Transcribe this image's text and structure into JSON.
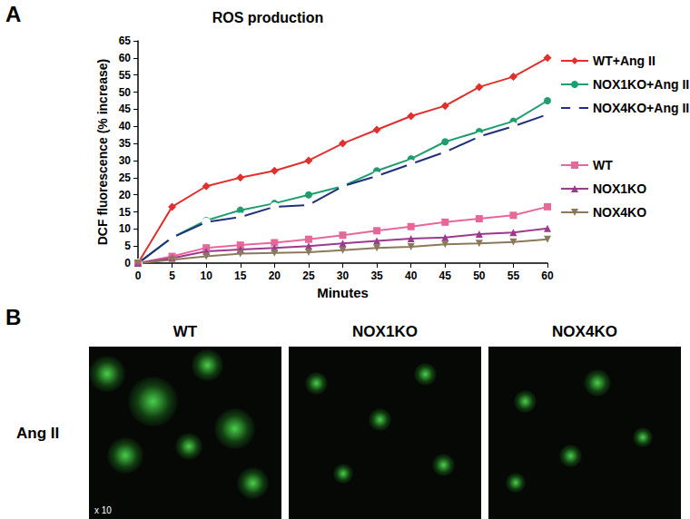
{
  "chart_data": {
    "type": "line",
    "title": "ROS production",
    "panel_label": "A",
    "x_label": "Minutes",
    "y_label": "DCF fluorescence (% increase)",
    "x": [
      0,
      5,
      10,
      15,
      20,
      25,
      30,
      35,
      40,
      45,
      50,
      55,
      60
    ],
    "series": [
      {
        "name": "WT+Ang II",
        "color": "#e0302e",
        "marker": "diamond",
        "values": [
          0,
          16.5,
          22.5,
          25,
          27,
          30,
          35,
          39,
          43,
          46,
          51.5,
          54.5,
          60
        ]
      },
      {
        "name": "NOX1KO+Ang II",
        "color": "#1e9e6e",
        "marker": "circle",
        "values": [
          0,
          7.5,
          12.5,
          15.5,
          17.5,
          20,
          22.5,
          27,
          30.5,
          35.5,
          38.5,
          41.5,
          47.5
        ]
      },
      {
        "name": "NOX4KO+Ang II",
        "color": "#1f2f7a",
        "marker": "open_circle",
        "values": [
          0,
          7.5,
          12,
          13.5,
          16.5,
          17,
          22.5,
          25.5,
          29,
          32.5,
          37,
          40,
          43.5
        ]
      },
      {
        "name": "WT",
        "color": "#e8679a",
        "marker": "square",
        "values": [
          0,
          2,
          4.5,
          5.3,
          6,
          7,
          8.2,
          9.5,
          10.7,
          12,
          13,
          14,
          16.5
        ]
      },
      {
        "name": "NOX1KO",
        "color": "#9b3a8e",
        "marker": "triangle",
        "values": [
          0,
          1.5,
          3.5,
          4,
          4.5,
          5,
          5.8,
          6.5,
          7.2,
          7.5,
          8.5,
          9,
          10.2
        ]
      },
      {
        "name": "NOX4KO",
        "color": "#8b7a5a",
        "marker": "triangle_down",
        "values": [
          0,
          1,
          2,
          2.8,
          3,
          3.2,
          3.8,
          4.5,
          4.8,
          5.5,
          5.8,
          6.2,
          7
        ]
      }
    ],
    "xlim": [
      0,
      60
    ],
    "xticks": [
      0,
      5,
      10,
      15,
      20,
      25,
      30,
      35,
      40,
      45,
      50,
      55,
      60
    ],
    "ylim": [
      0,
      65
    ],
    "yticks": [
      0,
      5,
      10,
      15,
      20,
      25,
      30,
      35,
      40,
      45,
      50,
      55,
      60,
      65
    ],
    "grid": false,
    "legend": "right"
  },
  "panel_b": {
    "panel_label": "B",
    "row_label": "Ang II",
    "columns": [
      "WT",
      "NOX1KO",
      "NOX4KO"
    ],
    "magnification": "x 10"
  }
}
